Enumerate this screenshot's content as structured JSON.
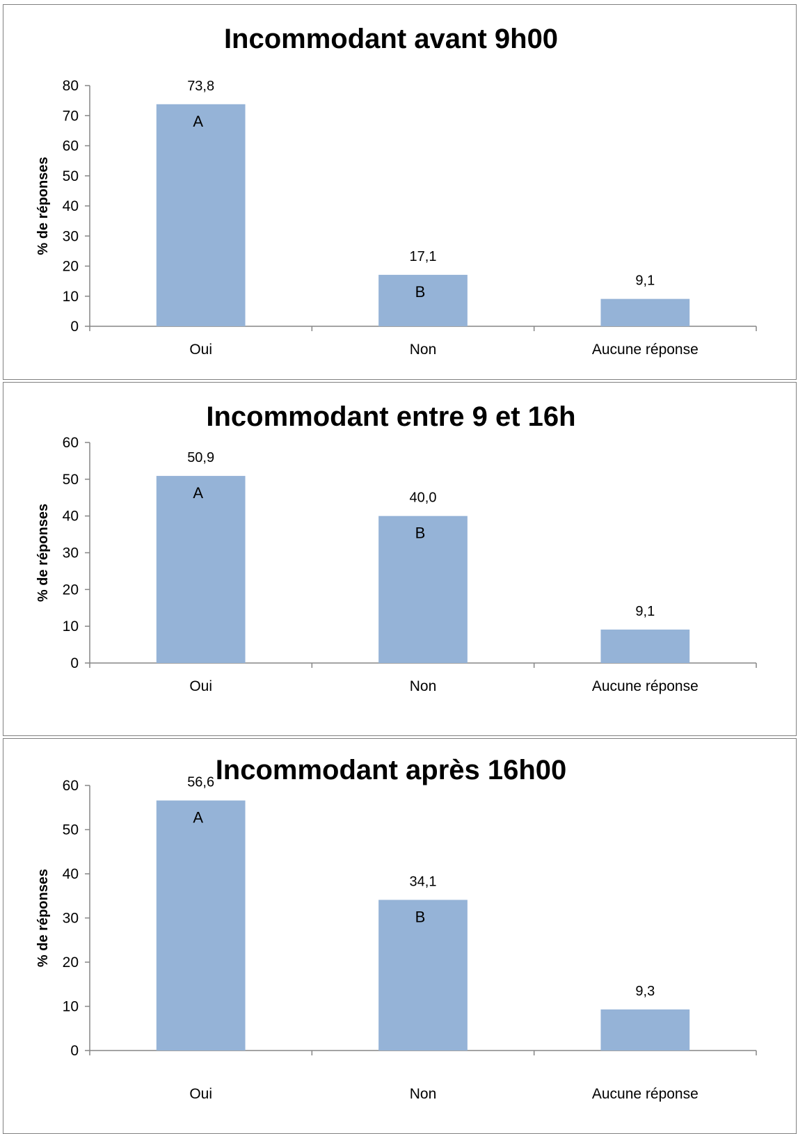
{
  "chart_data": [
    {
      "type": "bar",
      "title": "Incommodant avant 9h00",
      "ylabel": "% de réponses",
      "xlabel": "",
      "categories": [
        "Oui",
        "Non",
        "Aucune réponse"
      ],
      "values": [
        73.8,
        17.1,
        9.1
      ],
      "value_labels": [
        "73,8",
        "17,1",
        "9,1"
      ],
      "letters": [
        "A",
        "B",
        ""
      ],
      "ylim": [
        0,
        80
      ],
      "yticks": [
        0,
        10,
        20,
        30,
        40,
        50,
        60,
        70,
        80
      ],
      "grid": false,
      "bar_color": "#95B3D7"
    },
    {
      "type": "bar",
      "title": "Incommodant entre 9 et 16h",
      "ylabel": "% de réponses",
      "xlabel": "",
      "categories": [
        "Oui",
        "Non",
        "Aucune réponse"
      ],
      "values": [
        50.9,
        40.0,
        9.1
      ],
      "value_labels": [
        "50,9",
        "40,0",
        "9,1"
      ],
      "letters": [
        "A",
        "B",
        ""
      ],
      "ylim": [
        0,
        60
      ],
      "yticks": [
        0,
        10,
        20,
        30,
        40,
        50,
        60
      ],
      "grid": false,
      "bar_color": "#95B3D7"
    },
    {
      "type": "bar",
      "title": "Incommodant après 16h00",
      "ylabel": "% de réponses",
      "xlabel": "",
      "categories": [
        "Oui",
        "Non",
        "Aucune réponse"
      ],
      "values": [
        56.6,
        34.1,
        9.3
      ],
      "value_labels": [
        "56,6",
        "34,1",
        "9,3"
      ],
      "letters": [
        "A",
        "B",
        ""
      ],
      "ylim": [
        0,
        60
      ],
      "yticks": [
        0,
        10,
        20,
        30,
        40,
        50,
        60
      ],
      "grid": false,
      "bar_color": "#95B3D7"
    }
  ]
}
